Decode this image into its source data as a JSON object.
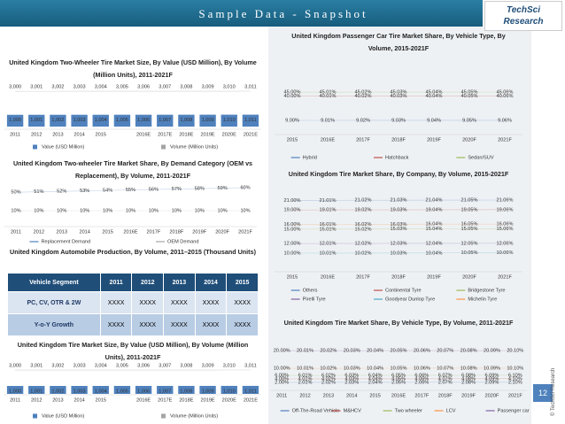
{
  "page": {
    "title": "Sample Data - Snapshot",
    "logo_top": "TechSci",
    "logo_bottom": "Research",
    "page_number": "12",
    "footer": "© TechSci Research"
  },
  "table": {
    "title": "United Kingdom Automobile Production, By Volume, 2011–2015 (Thousand Units)",
    "header": [
      "Vehicle Segment",
      "2011",
      "2012",
      "2013",
      "2014",
      "2015"
    ],
    "rows": [
      [
        "PC, CV, OTR & 2W",
        "XXXX",
        "XXXX",
        "XXXX",
        "XXXX",
        "XXXX"
      ],
      [
        "Y-o-Y Growth",
        "XXXX",
        "XXXX",
        "XXXX",
        "XXXX",
        "XXXX"
      ]
    ]
  },
  "chart_data": [
    {
      "type": "combo",
      "title": "United Kingdom Two-Wheeler Tire Market Size, By Value (USD Million), By Volume (Million Units), 2011-2021F",
      "categories": [
        "2011",
        "2012",
        "2013",
        "2014",
        "2015",
        null,
        "2016E",
        "2017E",
        "2018E",
        "2019E",
        "2020E",
        "2021E"
      ],
      "series": [
        {
          "name": "Value (USD Million)",
          "color": "#4f81bd",
          "mark": "bar",
          "values": [
            1000,
            1001,
            1002,
            1003,
            1004,
            1005,
            1006,
            1007,
            1008,
            1009,
            1010,
            1011
          ],
          "value_labels": [
            "1,000",
            "1,001",
            "1,002",
            "1,003",
            "1,004",
            "1,005",
            "1,006",
            "1,007",
            "1,008",
            "1,009",
            "1,010",
            "1,011"
          ]
        },
        {
          "name": "Volume (Million Units)",
          "color": "#a5a5a5",
          "mark": "line",
          "values": [
            3000,
            3001,
            3002,
            3003,
            3004,
            3005,
            3006,
            3007,
            3008,
            3009,
            3010,
            3011
          ],
          "value_labels": [
            "3,000",
            "3,001",
            "3,002",
            "3,003",
            "3,004",
            "3,005",
            "3,006",
            "3,007",
            "3,008",
            "3,009",
            "3,010",
            "3,011"
          ]
        }
      ]
    },
    {
      "type": "line",
      "title": "United Kingdom Two-wheeler Tire Market Share, By Demand Category (OEM vs Replacement), By Volume, 2011-2021F",
      "categories": [
        "2011",
        "2012",
        "2013",
        "2014",
        "2015",
        "2016E",
        "2017F",
        "2018F",
        "2019F",
        "2020F",
        "2021F"
      ],
      "series": [
        {
          "name": "Replacement Demand",
          "color": "#4f81bd",
          "values": [
            50,
            51,
            52,
            53,
            54,
            55,
            56,
            57,
            58,
            59,
            60
          ],
          "value_labels": [
            "50%",
            "51%",
            "52%",
            "53%",
            "54%",
            "55%",
            "56%",
            "57%",
            "58%",
            "59%",
            "60%"
          ]
        },
        {
          "name": "OEM Demand",
          "color": "#a5a5a5",
          "values": [
            10,
            10,
            10,
            10,
            10,
            10,
            10,
            10,
            10,
            10,
            10
          ],
          "value_labels": [
            "10%",
            "10%",
            "10%",
            "10%",
            "10%",
            "10%",
            "10%",
            "10%",
            "10%",
            "10%",
            "10%"
          ]
        }
      ]
    },
    {
      "type": "combo",
      "title": "United Kingdom Tire Market Size, By Value (USD Million), By Volume (Million Units), 2011-2021F",
      "categories": [
        "2011",
        "2012",
        "2013",
        "2014",
        "2015",
        null,
        "2016E",
        "2017E",
        "2018E",
        "2019E",
        "2020E",
        "2021E"
      ],
      "series": [
        {
          "name": "Value (USD Million)",
          "color": "#4f81bd",
          "mark": "bar",
          "values": [
            1000,
            1001,
            1002,
            1003,
            1004,
            1005,
            1006,
            1007,
            1008,
            1009,
            1010,
            1011
          ],
          "value_labels": [
            "1,000",
            "1,001",
            "1,002",
            "1,003",
            "1,004",
            "1,005",
            "1,006",
            "1,007",
            "1,008",
            "1,009",
            "1,010",
            "1,011"
          ]
        },
        {
          "name": "Volume (Million Units)",
          "color": "#a5a5a5",
          "mark": "line",
          "values": [
            3000,
            3001,
            3002,
            3003,
            3004,
            3005,
            3006,
            3007,
            3008,
            3009,
            3010,
            3011
          ],
          "value_labels": [
            "3,000",
            "3,001",
            "3,002",
            "3,003",
            "3,004",
            "3,005",
            "3,006",
            "3,007",
            "3,008",
            "3,009",
            "3,010",
            "3,011"
          ]
        }
      ]
    },
    {
      "type": "line",
      "title": "United Kingdom Passenger Car Tire Market Share, By Vehicle Type, By Volume, 2015-2021F",
      "categories": [
        "2015",
        "2016E",
        "2017F",
        "2018F",
        "2019F",
        "2020F",
        "2021F"
      ],
      "series": [
        {
          "name": "Hybrid",
          "color": "#4f81bd",
          "values": [
            9,
            9.01,
            9.02,
            9.03,
            9.04,
            9.05,
            9.06
          ],
          "value_labels": [
            "9.00%",
            "9.01%",
            "9.02%",
            "9.03%",
            "9.04%",
            "9.05%",
            "9.06%"
          ]
        },
        {
          "name": "Hatchback",
          "color": "#c0504d",
          "values": [
            40,
            40.01,
            40.02,
            40.03,
            40.04,
            40.05,
            40.06
          ],
          "value_labels": [
            "40.00%",
            "40.01%",
            "40.02%",
            "40.03%",
            "40.04%",
            "40.05%",
            "40.06%"
          ]
        },
        {
          "name": "Sedan/SUV",
          "color": "#9bbb59",
          "values": [
            45,
            45.01,
            45.02,
            45.03,
            45.04,
            45.05,
            45.06
          ],
          "value_labels": [
            "45.00%",
            "45.01%",
            "45.02%",
            "45.03%",
            "45.04%",
            "45.05%",
            "45.06%"
          ]
        }
      ]
    },
    {
      "type": "line",
      "title": "United Kingdom Tire Market Share, By Company, By Volume, 2015-2021F",
      "categories": [
        "2015",
        "2016E",
        "2017F",
        "2018F",
        "2019F",
        "2020F",
        "2021F"
      ],
      "series": [
        {
          "name": "Others",
          "color": "#4f81bd",
          "values": [
            21,
            21.01,
            21.02,
            21.03,
            21.04,
            21.05,
            21.06
          ],
          "value_labels": [
            "21.00%",
            "21.01%",
            "21.02%",
            "21.03%",
            "21.04%",
            "21.05%",
            "21.06%"
          ]
        },
        {
          "name": "Continental Tyre",
          "color": "#c0504d",
          "values": [
            19,
            19.01,
            19.02,
            19.03,
            19.04,
            19.05,
            19.06
          ],
          "value_labels": [
            "19.00%",
            "19.01%",
            "19.02%",
            "19.03%",
            "19.04%",
            "19.05%",
            "19.06%"
          ]
        },
        {
          "name": "Bridgestone Tyre",
          "color": "#9bbb59",
          "values": [
            15,
            15.01,
            15.02,
            15.03,
            15.04,
            15.05,
            15.06
          ],
          "value_labels": [
            "15.00%",
            "15.01%",
            "15.02%",
            "15.03%",
            "15.04%",
            "15.05%",
            "15.06%"
          ]
        },
        {
          "name": "Pirelli Tyre",
          "color": "#8064a2",
          "values": [
            12,
            12.01,
            12.02,
            12.03,
            12.04,
            12.05,
            12.06
          ],
          "value_labels": [
            "12.00%",
            "12.01%",
            "12.02%",
            "12.03%",
            "12.04%",
            "12.05%",
            "12.06%"
          ]
        },
        {
          "name": "Goodyear Dunlop Tyre",
          "color": "#4bacc6",
          "values": [
            10,
            10.01,
            10.02,
            10.03,
            10.04,
            10.05,
            10.06
          ],
          "value_labels": [
            "10.00%",
            "10.01%",
            "10.02%",
            "10.03%",
            "10.04%",
            "10.05%",
            "10.06%"
          ]
        },
        {
          "name": "Michelin Tyre",
          "color": "#f79646",
          "values": [
            16,
            16.01,
            16.02,
            16.03,
            16.04,
            16.05,
            16.06
          ],
          "value_labels": [
            "16.00%",
            "16.01%",
            "16.02%",
            "16.03%",
            "16.04%",
            "16.05%",
            "16.06%"
          ]
        }
      ]
    },
    {
      "type": "line",
      "title": "United Kingdom Tire Market Share, By Vehicle Type, By Volume, 2011-2021F",
      "categories": [
        "2011",
        "2012",
        "2013",
        "2014",
        "2015",
        "2016E",
        "2017F",
        "2018F",
        "2019F",
        "2020F",
        "2021F"
      ],
      "series": [
        {
          "name": "Off-The-Road Vehicle",
          "color": "#4f81bd",
          "values": [
            2,
            2.01,
            2.02,
            2.03,
            2.04,
            2.05,
            2.06,
            2.07,
            2.08,
            2.09,
            2.1
          ],
          "value_labels": [
            "2.00%",
            "2.01%",
            "2.02%",
            "2.03%",
            "2.04%",
            "2.05%",
            "2.06%",
            "2.07%",
            "2.08%",
            "2.09%",
            "2.10%"
          ]
        },
        {
          "name": "M&HCV",
          "color": "#c0504d",
          "values": [
            4,
            4.01,
            4.02,
            4.03,
            4.04,
            4.05,
            4.06,
            4.07,
            4.08,
            4.09,
            4.1
          ],
          "value_labels": [
            "4.00%",
            "4.01%",
            "4.02%",
            "4.03%",
            "4.04%",
            "4.05%",
            "4.06%",
            "4.07%",
            "4.08%",
            "4.09%",
            "4.10%"
          ]
        },
        {
          "name": "Two wheeler",
          "color": "#9bbb59",
          "values": [
            6,
            6.01,
            6.02,
            6.03,
            6.04,
            6.05,
            6.06,
            6.07,
            6.08,
            6.09,
            6.1
          ],
          "value_labels": [
            "6.00%",
            "6.01%",
            "6.02%",
            "6.03%",
            "6.04%",
            "6.05%",
            "6.06%",
            "6.07%",
            "6.08%",
            "6.09%",
            "6.10%"
          ]
        },
        {
          "name": "LCV",
          "color": "#f79646",
          "values": [
            10,
            10.01,
            10.02,
            10.03,
            10.04,
            10.05,
            10.06,
            10.07,
            10.08,
            10.09,
            10.1
          ],
          "value_labels": [
            "10.00%",
            "10.01%",
            "10.02%",
            "10.03%",
            "10.04%",
            "10.05%",
            "10.06%",
            "10.07%",
            "10.08%",
            "10.09%",
            "10.10%"
          ]
        },
        {
          "name": "Passenger car",
          "color": "#8064a2",
          "values": [
            20,
            20.01,
            20.02,
            20.03,
            20.04,
            20.05,
            20.06,
            20.07,
            20.08,
            20.09,
            20.1
          ],
          "value_labels": [
            "20.00%",
            "20.01%",
            "20.02%",
            "20.03%",
            "20.04%",
            "20.05%",
            "20.06%",
            "20.07%",
            "20.08%",
            "20.09%",
            "20.10%"
          ]
        }
      ]
    }
  ]
}
